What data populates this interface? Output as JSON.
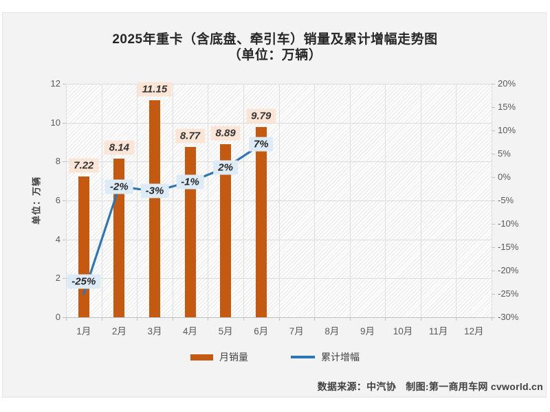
{
  "title": {
    "line1": "2025年重卡（含底盘、牵引车）销量及累计增幅走势图",
    "line2": "（单位：万辆）"
  },
  "chart_data": {
    "type": "bar+line combo",
    "categories": [
      "1月",
      "2月",
      "3月",
      "4月",
      "5月",
      "6月",
      "7月",
      "8月",
      "9月",
      "10月",
      "11月",
      "12月"
    ],
    "series": [
      {
        "name": "月销量",
        "type": "bar",
        "axis": "left",
        "values": [
          7.22,
          8.14,
          11.15,
          8.77,
          8.89,
          9.79
        ],
        "value_labels": [
          "7.22",
          "8.14",
          "11.15",
          "8.77",
          "8.89",
          "9.79"
        ],
        "color": "#C45911",
        "label_bg": "#FBE5D6"
      },
      {
        "name": "累计增幅",
        "type": "line",
        "axis": "right",
        "values": [
          -25,
          -2,
          -3,
          -1,
          2,
          7
        ],
        "value_labels": [
          "-25%",
          "-2%",
          "-3%",
          "-1%",
          "2%",
          "7%"
        ],
        "color": "#2E75B6",
        "label_bg": "#DDEBF7"
      }
    ],
    "left_axis": {
      "title": "单位：万辆",
      "min": 0,
      "max": 12,
      "step": 2,
      "ticks": [
        "0",
        "2",
        "4",
        "6",
        "8",
        "10",
        "12"
      ]
    },
    "right_axis": {
      "min": -30,
      "max": 20,
      "step": 5,
      "ticks_top_to_bottom": [
        "20%",
        "15%",
        "10%",
        "5%",
        "0%",
        "-5%",
        "-10%",
        "-15%",
        "-20%",
        "-25%",
        "-30%"
      ]
    },
    "grid": "horizontal and vertical gridlines on hatched plot background",
    "legend_position": "bottom-center"
  },
  "legend": {
    "items": [
      {
        "label": "月销量",
        "swatch": "bar"
      },
      {
        "label": "累计增幅",
        "swatch": "line"
      }
    ]
  },
  "footer": {
    "text": "数据来源：中汽协　制图:第一商用车网 cvworld.cn"
  }
}
